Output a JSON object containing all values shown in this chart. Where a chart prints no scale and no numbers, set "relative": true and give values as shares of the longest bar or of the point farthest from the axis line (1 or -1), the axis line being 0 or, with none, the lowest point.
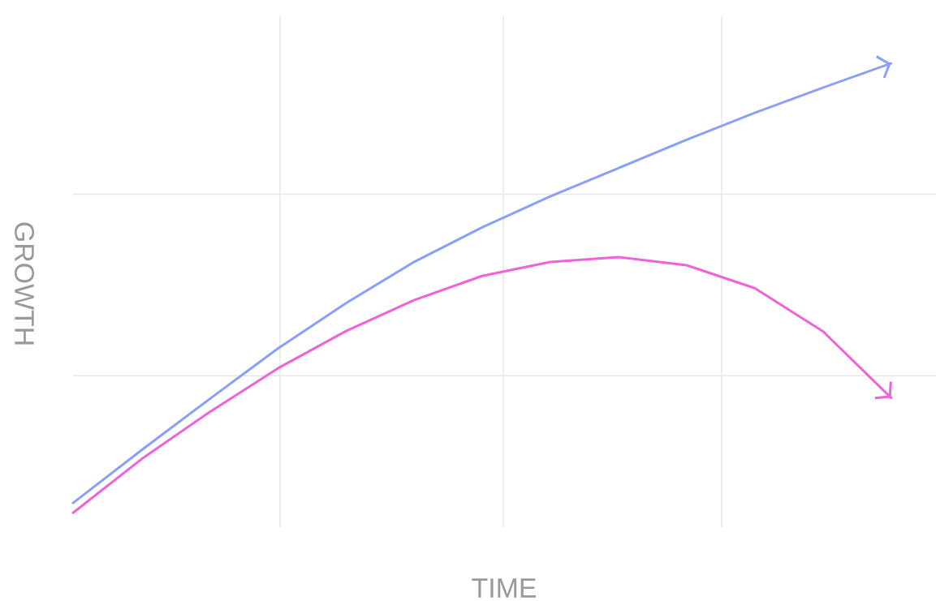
{
  "chart_data": {
    "type": "line",
    "relative": true,
    "xlabel": "TIME",
    "ylabel": "GROWTH",
    "categories": [
      null,
      null,
      null,
      null,
      null,
      null,
      null,
      null,
      null,
      null,
      null,
      null,
      null
    ],
    "grid": true,
    "line_style": "solid",
    "marker": "none",
    "series": [
      {
        "color": "#8aa0f8",
        "values": [
          0.022,
          0.139,
          0.253,
          0.365,
          0.466,
          0.558,
          0.635,
          0.704,
          0.767,
          0.83,
          0.89,
          0.946,
          1.0
        ]
      },
      {
        "color": "#f062d8",
        "values": [
          0,
          0.119,
          0.224,
          0.321,
          0.404,
          0.473,
          0.527,
          0.558,
          0.569,
          0.551,
          0.5,
          0.404,
          0.256
        ]
      }
    ]
  }
}
